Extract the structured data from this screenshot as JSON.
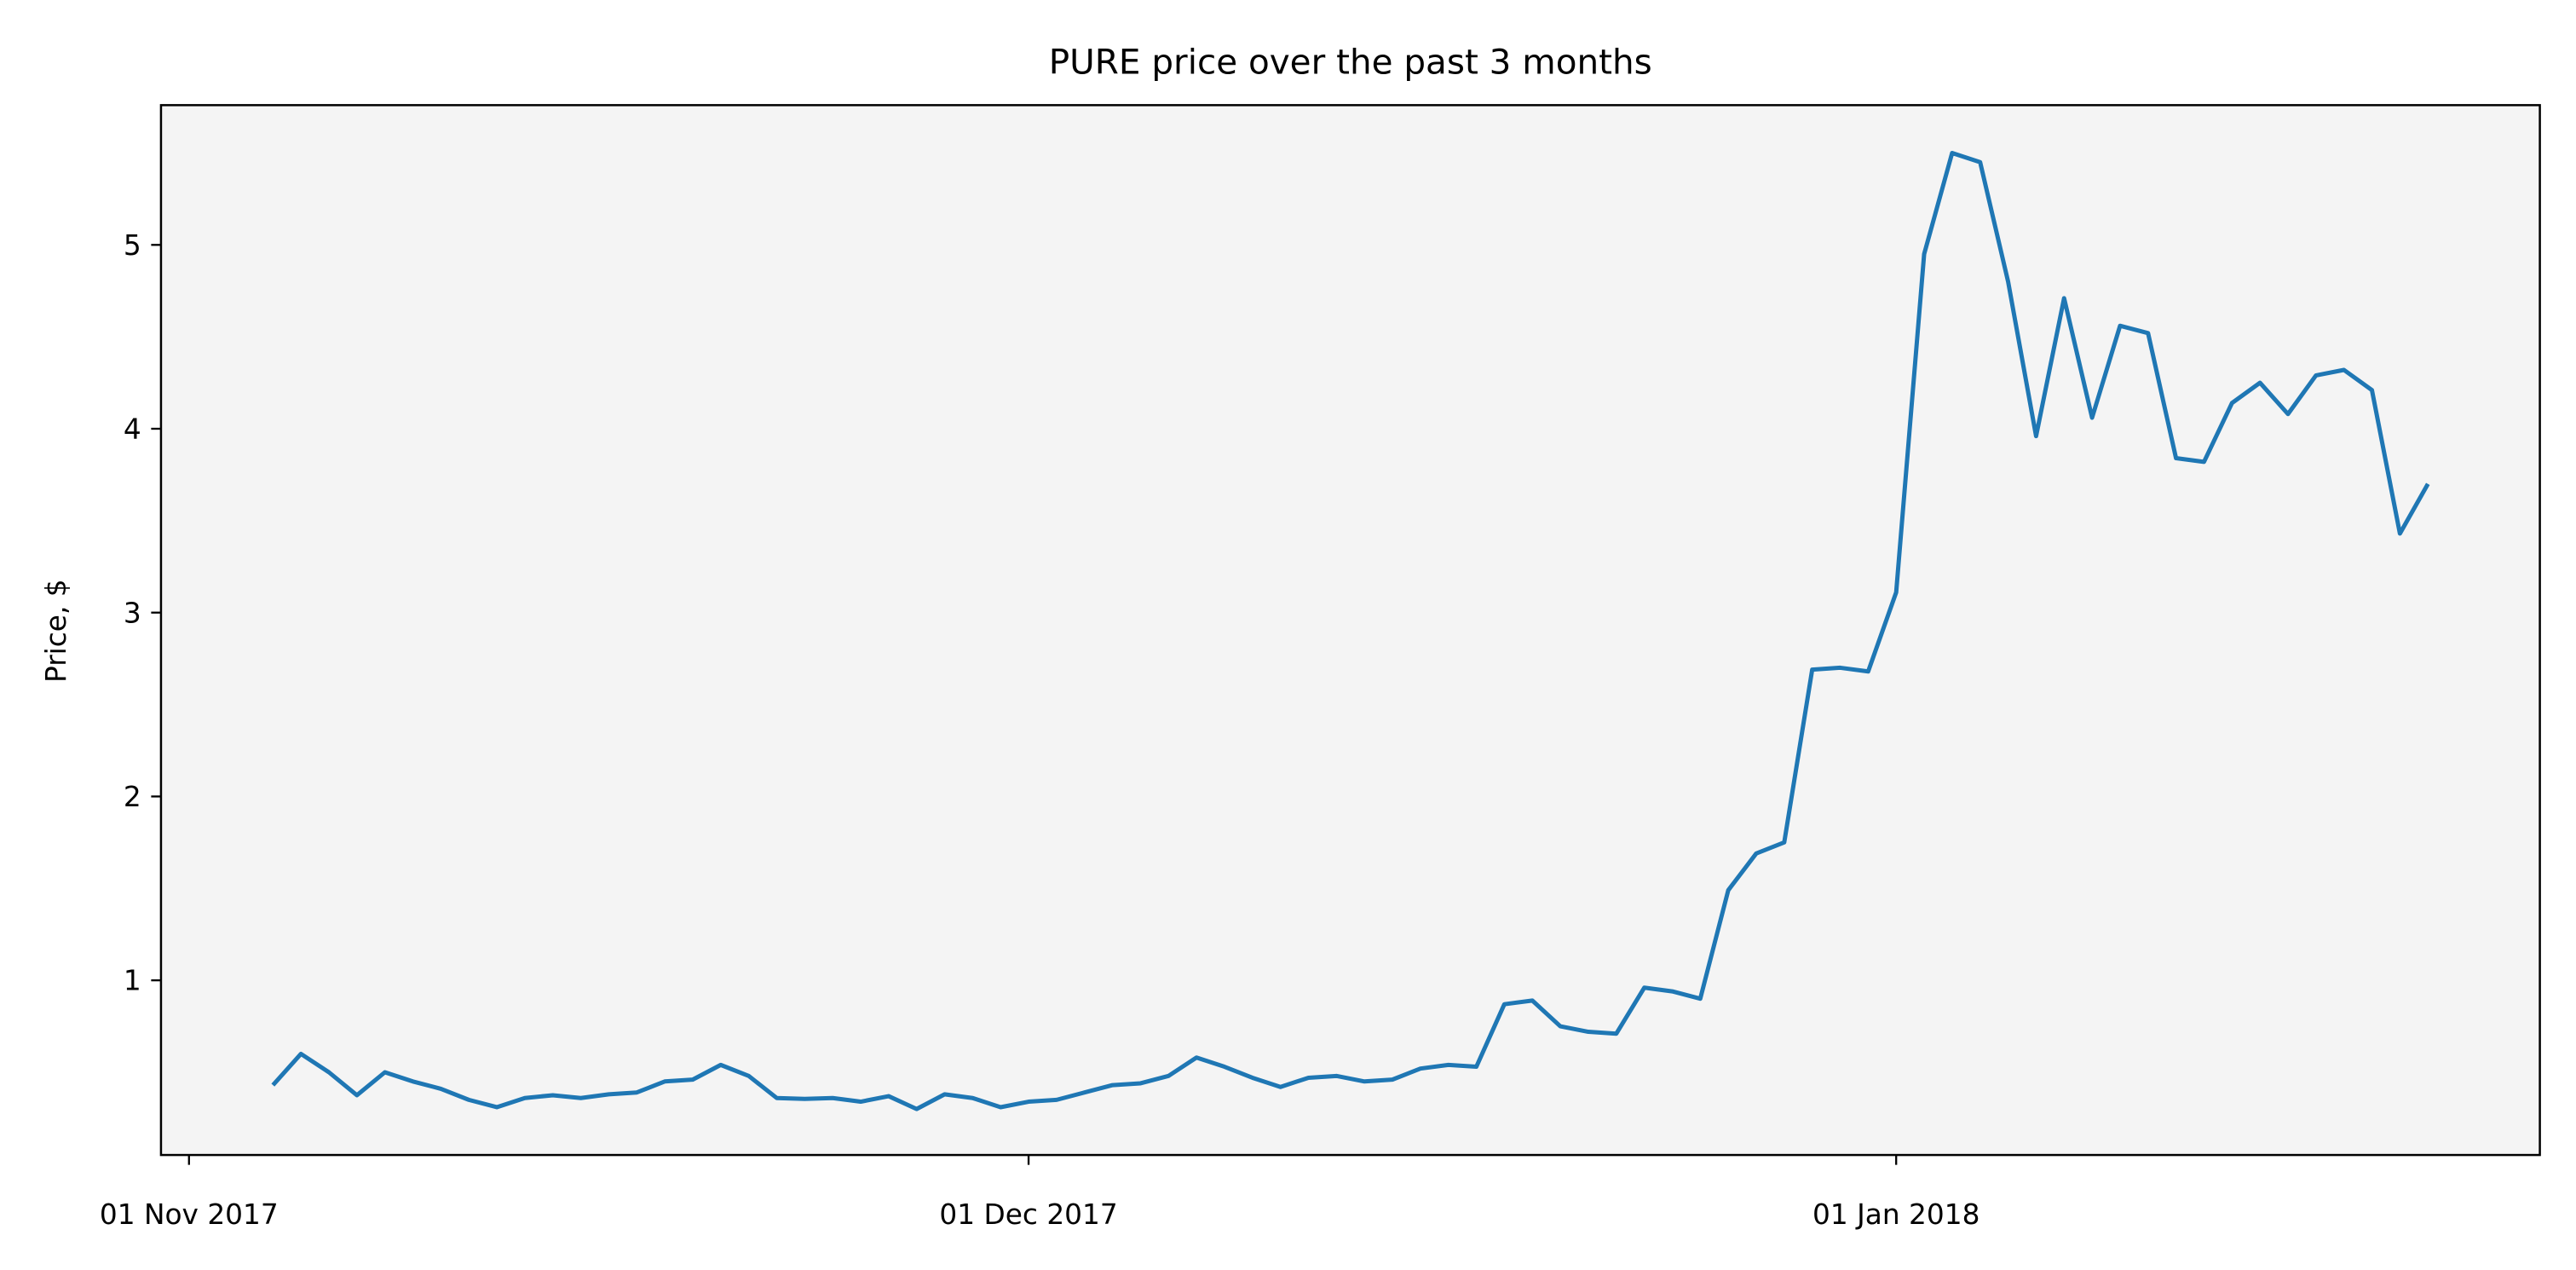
{
  "chart_data": {
    "type": "line",
    "title": "PURE price over the past 3 months",
    "y_label": "Price, $",
    "color": "#1f77b4",
    "background": "#f4f4f4",
    "x": [
      "2017-11-04",
      "2017-11-05",
      "2017-11-06",
      "2017-11-07",
      "2017-11-08",
      "2017-11-09",
      "2017-11-10",
      "2017-11-11",
      "2017-11-12",
      "2017-11-13",
      "2017-11-14",
      "2017-11-15",
      "2017-11-16",
      "2017-11-17",
      "2017-11-18",
      "2017-11-19",
      "2017-11-20",
      "2017-11-21",
      "2017-11-22",
      "2017-11-23",
      "2017-11-24",
      "2017-11-25",
      "2017-11-26",
      "2017-11-27",
      "2017-11-28",
      "2017-11-29",
      "2017-11-30",
      "2017-12-01",
      "2017-12-02",
      "2017-12-03",
      "2017-12-04",
      "2017-12-05",
      "2017-12-06",
      "2017-12-07",
      "2017-12-08",
      "2017-12-09",
      "2017-12-10",
      "2017-12-11",
      "2017-12-12",
      "2017-12-13",
      "2017-12-14",
      "2017-12-15",
      "2017-12-16",
      "2017-12-17",
      "2017-12-18",
      "2017-12-19",
      "2017-12-20",
      "2017-12-21",
      "2017-12-22",
      "2017-12-23",
      "2017-12-24",
      "2017-12-25",
      "2017-12-26",
      "2017-12-27",
      "2017-12-28",
      "2017-12-29",
      "2017-12-30",
      "2017-12-31",
      "2018-01-01",
      "2018-01-02",
      "2018-01-03",
      "2018-01-04",
      "2018-01-05",
      "2018-01-06",
      "2018-01-07",
      "2018-01-08",
      "2018-01-09",
      "2018-01-10",
      "2018-01-11",
      "2018-01-12",
      "2018-01-13",
      "2018-01-14",
      "2018-01-15",
      "2018-01-16",
      "2018-01-17",
      "2018-01-18",
      "2018-01-19",
      "2018-01-20"
    ],
    "values": [
      0.43,
      0.6,
      0.5,
      0.375,
      0.5,
      0.45,
      0.41,
      0.35,
      0.31,
      0.36,
      0.375,
      0.36,
      0.38,
      0.39,
      0.45,
      0.46,
      0.54,
      0.48,
      0.36,
      0.355,
      0.36,
      0.34,
      0.37,
      0.3,
      0.38,
      0.36,
      0.31,
      0.34,
      0.35,
      0.39,
      0.43,
      0.44,
      0.48,
      0.58,
      0.53,
      0.47,
      0.42,
      0.47,
      0.48,
      0.45,
      0.46,
      0.52,
      0.54,
      0.53,
      0.87,
      0.89,
      0.75,
      0.72,
      0.71,
      0.96,
      0.94,
      0.9,
      1.49,
      1.69,
      1.75,
      2.69,
      2.7,
      2.68,
      3.11,
      4.95,
      5.5,
      5.45,
      4.8,
      3.96,
      4.71,
      4.06,
      4.56,
      4.52,
      3.84,
      3.82,
      4.14,
      4.25,
      4.08,
      4.29,
      4.32,
      4.21,
      3.43,
      3.7
    ],
    "xlim": [
      "2017-10-31",
      "2018-01-24"
    ],
    "xticks": [
      {
        "value": "2017-11-01",
        "label": "01 Nov 2017"
      },
      {
        "value": "2017-12-01",
        "label": "01 Dec 2017"
      },
      {
        "value": "2018-01-01",
        "label": "01 Jan 2018"
      }
    ],
    "ylim": [
      0.05,
      5.76
    ],
    "yticks": [
      1,
      2,
      3,
      4,
      5
    ]
  }
}
